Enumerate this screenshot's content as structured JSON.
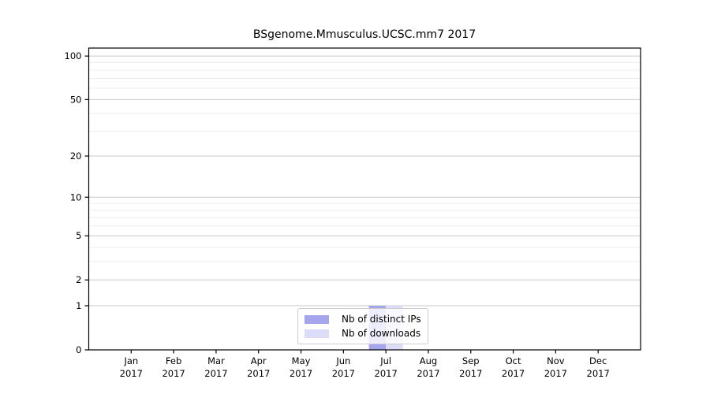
{
  "chart_data": {
    "type": "bar",
    "title": "BSgenome.Mmusculus.UCSC.mm7 2017",
    "categories": [
      "Jan",
      "Feb",
      "Mar",
      "Apr",
      "May",
      "Jun",
      "Jul",
      "Aug",
      "Sep",
      "Oct",
      "Nov",
      "Dec"
    ],
    "x_year": "2017",
    "series": [
      {
        "name": "Nb of distinct IPs",
        "color": "#a5a5ee",
        "values": [
          0,
          0,
          0,
          0,
          0,
          0,
          1,
          0,
          0,
          0,
          0,
          0
        ]
      },
      {
        "name": "Nb of downloads",
        "color": "#dcdcf8",
        "values": [
          0,
          0,
          0,
          0,
          0,
          0,
          1,
          0,
          0,
          0,
          0,
          0
        ]
      }
    ],
    "scale": "log1p",
    "ylim": [
      0,
      113.5
    ],
    "y_ticks": [
      0,
      1,
      2,
      5,
      10,
      20,
      50,
      100
    ],
    "y_minor_ticks": [
      3,
      4,
      6,
      7,
      8,
      9,
      30,
      40,
      60,
      70,
      80,
      90
    ],
    "grid": "horizontal",
    "legend_position": "bottom-center",
    "colors": {
      "frame": "#000000",
      "grid_major": "#c9c9c9",
      "grid_minor": "#ececec",
      "tick_text": "#000000"
    }
  }
}
